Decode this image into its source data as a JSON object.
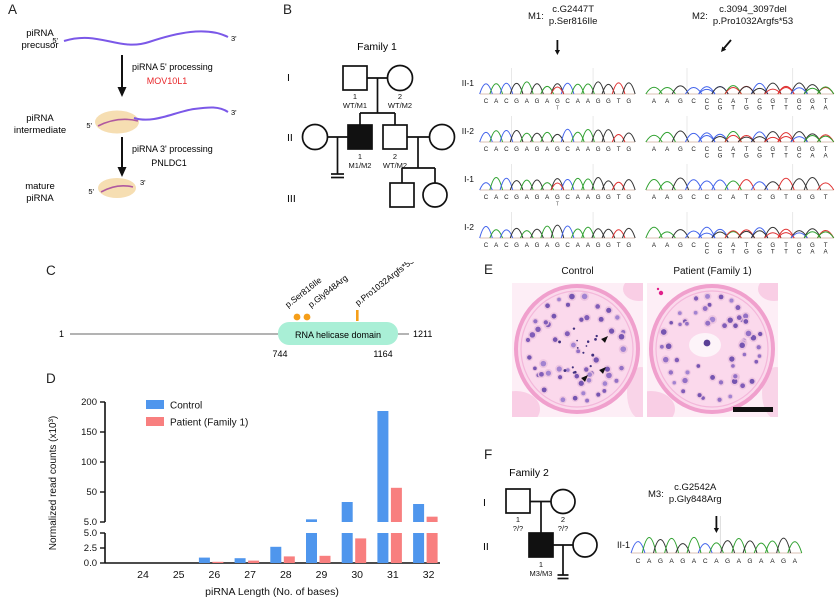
{
  "panel_labels": {
    "a": "A",
    "b": "B",
    "c": "C",
    "d": "D",
    "e": "E",
    "f": "F"
  },
  "panel_a": {
    "stage_labels": [
      [
        "piRNA",
        "precusor"
      ],
      [
        "piRNA",
        "intermediate"
      ],
      [
        "mature",
        "piRNA"
      ]
    ],
    "steps": [
      {
        "text": "piRNA 5' processing",
        "enzyme": "MOV10L1"
      },
      {
        "text": "piRNA 3' processing",
        "enzyme": "PNLDC1"
      }
    ],
    "end_labels": {
      "five": "5'",
      "three": "3'"
    },
    "colors": {
      "rna": "#7b58e8",
      "body": "#f6deb2",
      "inner": "#b0599f",
      "enzyme1": "#e8262a",
      "enzyme2": "#231f20"
    }
  },
  "family1": {
    "title": "Family 1",
    "gen_labels": [
      "I",
      "II",
      "III"
    ],
    "members": {
      "i1": {
        "num": "1",
        "genotype": "WT/M1"
      },
      "i2": {
        "num": "2",
        "genotype": "WT/M2"
      },
      "ii1": {
        "num": "1",
        "genotype": "M1/M2"
      },
      "ii2": {
        "num": "2",
        "genotype": "WT/M2"
      }
    }
  },
  "family2": {
    "title": "Family 2",
    "gen_labels": [
      "I",
      "II"
    ],
    "members": {
      "i1": {
        "num": "1",
        "genotype": "?/?"
      },
      "i2": {
        "num": "2",
        "genotype": "?/?"
      },
      "ii1": {
        "num": "1",
        "genotype": "M3/M3"
      }
    }
  },
  "sanger": {
    "m1_header": {
      "id": "M1:",
      "cdna": "c.G2447T",
      "protein": "p.Ser816Ile"
    },
    "m2_header": {
      "id": "M2:",
      "cdna": "c.3094_3097del",
      "protein": "p.Pro1032Argfs*53"
    },
    "m3_header": {
      "id": "M3:",
      "cdna": "c.G2542A",
      "protein": "p.Gly848Arg"
    },
    "base_colors": {
      "A": "#2fa12f",
      "C": "#4263eb",
      "G": "#333333",
      "T": "#e03131"
    },
    "family1_rows": [
      {
        "label": "II-1",
        "m1": {
          "seq": "CACGAGAGCAAGGTG",
          "het_index": 7,
          "het_base": "T",
          "arrow": true
        },
        "m2": {
          "seq": "AAGCCCATCGTGGT",
          "second_seq": "CGTGGTTCAA",
          "second_start": 4,
          "arrow": true
        }
      },
      {
        "label": "II-2",
        "m1": {
          "seq": "CACGAGAGCAAGGTG"
        },
        "m2": {
          "seq": "AAGCCCATCGTGGT",
          "second_seq": "CGTGGTTCAA",
          "second_start": 4
        }
      },
      {
        "label": "I-1",
        "m1": {
          "seq": "CACGAGAGCAAGGTG",
          "het_index": 7,
          "het_base": "T"
        },
        "m2": {
          "seq": "AAGCCCATCGTGGT"
        }
      },
      {
        "label": "I-2",
        "m1": {
          "seq": "CACGAGAGCAAGGTG"
        },
        "m2": {
          "seq": "AAGCCCATCGTGGT",
          "second_seq": "CGTGGTTCAA",
          "second_start": 4
        }
      }
    ],
    "family2_row": {
      "label": "II-1",
      "seq": "CAGAGACAGAGAAGA",
      "arrow_index": 7
    }
  },
  "panel_c": {
    "start": "1",
    "end": "1211",
    "domain_label": "RNA helicase domain",
    "domain_start": "744",
    "domain_end": "1164",
    "mutation_labels": [
      "p.Ser816Ile",
      "p.Gly848Arg",
      "p.Pro1032Argfs*53"
    ],
    "colors": {
      "domain": "#a9efd6",
      "marker": "#f59e19"
    }
  },
  "chart_data": {
    "type": "bar",
    "xlabel": "piRNA Length (No. of bases)",
    "ylabel": "Normalized read counts (x10³)",
    "categories": [
      24,
      25,
      26,
      27,
      28,
      29,
      30,
      31,
      32
    ],
    "series": [
      {
        "name": "Control",
        "color": "#4f96ed",
        "values": [
          0,
          0,
          0.9,
          0.8,
          2.7,
          9,
          35,
          185,
          32
        ]
      },
      {
        "name": "Patient (Family 1)",
        "color": "#f87f7f",
        "values": [
          0,
          0,
          0.2,
          0.4,
          1.1,
          1.2,
          4.1,
          57,
          13
        ]
      }
    ],
    "axis_break": {
      "lower_ticks": [
        0,
        2.5,
        5
      ],
      "upper_ticks": [
        5,
        50,
        100,
        150,
        200
      ]
    },
    "ylim_lower": [
      0,
      5
    ],
    "ylim_upper": [
      5,
      200
    ],
    "grid": false,
    "legend_position": "top-left"
  },
  "panel_e": {
    "control_title": "Control",
    "patient_title": "Patient (Family 1)"
  }
}
